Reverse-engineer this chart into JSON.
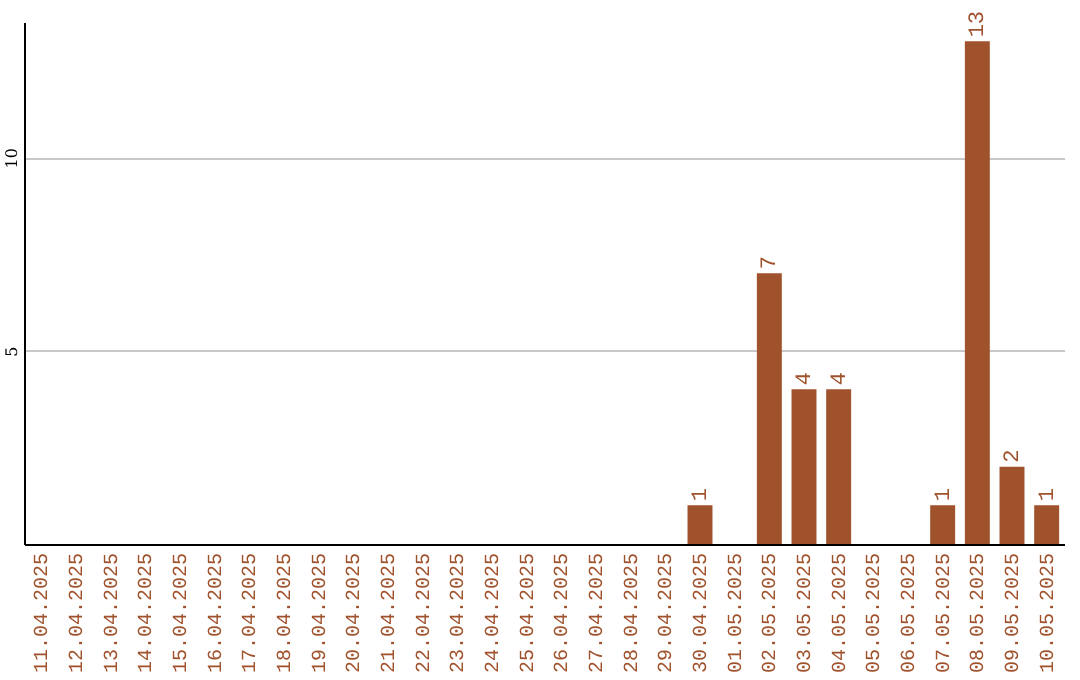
{
  "chart_data": {
    "type": "bar",
    "categories": [
      "11.04.2025",
      "12.04.2025",
      "13.04.2025",
      "14.04.2025",
      "15.04.2025",
      "16.04.2025",
      "17.04.2025",
      "18.04.2025",
      "19.04.2025",
      "20.04.2025",
      "21.04.2025",
      "22.04.2025",
      "23.04.2025",
      "24.04.2025",
      "25.04.2025",
      "26.04.2025",
      "27.04.2025",
      "28.04.2025",
      "29.04.2025",
      "30.04.2025",
      "01.05.2025",
      "02.05.2025",
      "03.05.2025",
      "04.05.2025",
      "05.05.2025",
      "06.05.2025",
      "07.05.2025",
      "08.05.2025",
      "09.05.2025",
      "10.05.2025"
    ],
    "values": [
      0,
      0,
      0,
      0,
      0,
      0,
      0,
      0,
      0,
      0,
      0,
      0,
      0,
      0,
      0,
      0,
      0,
      0,
      0,
      1,
      0,
      7,
      4,
      4,
      0,
      0,
      1,
      13,
      2,
      1
    ],
    "value_labels": [
      null,
      null,
      null,
      null,
      null,
      null,
      null,
      null,
      null,
      null,
      null,
      null,
      null,
      null,
      null,
      null,
      null,
      null,
      null,
      "1",
      null,
      "7",
      "4",
      "4",
      null,
      null,
      "1",
      "13",
      "2",
      "1"
    ],
    "color": "#a0522d",
    "ylim": [
      0,
      13.5
    ],
    "yticks": [
      5,
      10
    ],
    "grid": "y"
  }
}
